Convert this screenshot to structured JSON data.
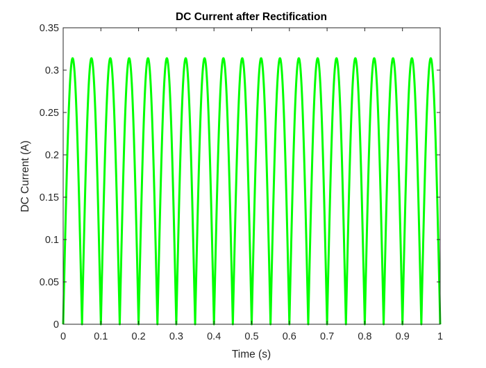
{
  "chart_data": {
    "type": "line",
    "title": "DC Current after Rectification",
    "xlabel": "Time (s)",
    "ylabel": "DC Current (A)",
    "xlim": [
      0,
      1
    ],
    "ylim": [
      0,
      0.35
    ],
    "xticks": [
      0,
      0.1,
      0.2,
      0.3,
      0.4,
      0.5,
      0.6,
      0.7,
      0.8,
      0.9,
      1
    ],
    "xtick_labels": [
      "0",
      "0.1",
      "0.2",
      "0.3",
      "0.4",
      "0.5",
      "0.6",
      "0.7",
      "0.8",
      "0.9",
      "1"
    ],
    "yticks": [
      0,
      0.05,
      0.1,
      0.15,
      0.2,
      0.25,
      0.3,
      0.35
    ],
    "ytick_labels": [
      "0",
      "0.05",
      "0.1",
      "0.15",
      "0.2",
      "0.25",
      "0.3",
      "0.35"
    ],
    "grid": false,
    "legend": "none",
    "series": [
      {
        "waveform": "full-wave rectified sine",
        "amplitude": 0.314,
        "signal_frequency": 10,
        "color": "#00ff00"
      }
    ]
  }
}
